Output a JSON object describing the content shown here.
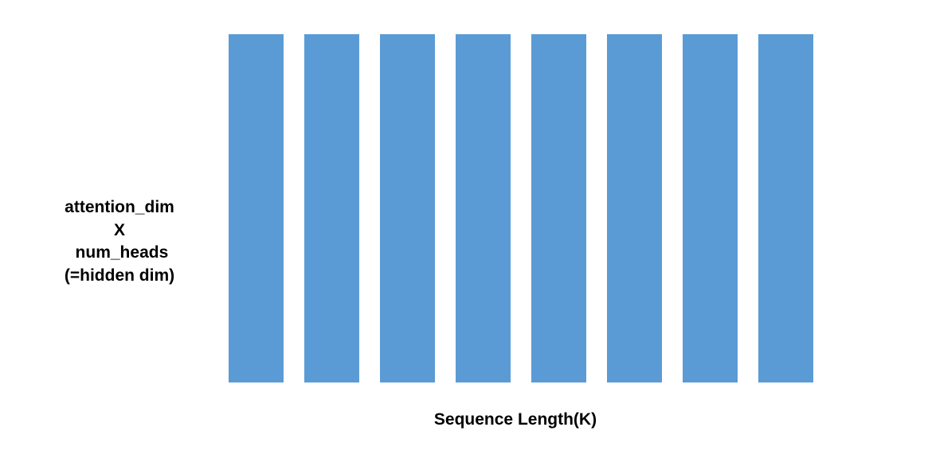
{
  "diagram": {
    "bar_color": "#5b9bd5",
    "bar_count": 8,
    "y_label_lines": [
      "attention_dim",
      "X",
      " num_heads",
      "(=hidden dim)"
    ],
    "x_label": "Sequence Length(K)"
  }
}
